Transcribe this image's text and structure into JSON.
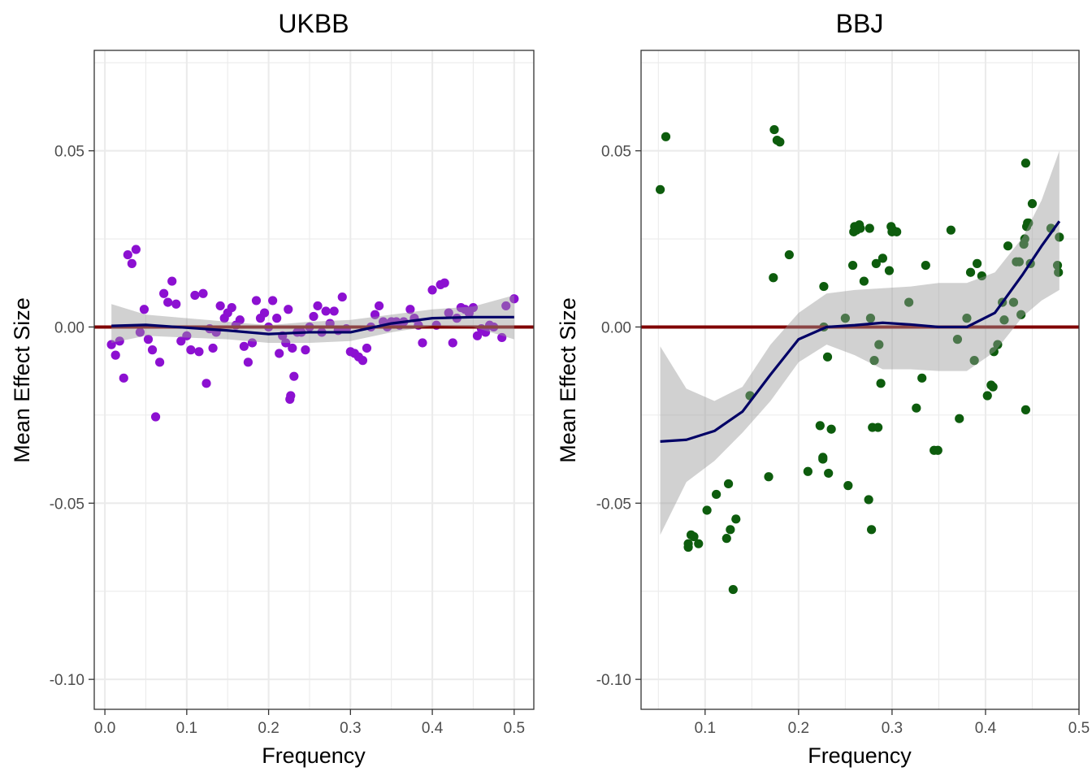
{
  "chart_data": [
    {
      "type": "scatter",
      "title": "UKBB",
      "xlabel": "Frequency",
      "ylabel": "Mean Effect Size",
      "xlim": [
        -0.013,
        0.524
      ],
      "ylim": [
        -0.1085,
        0.0785
      ],
      "xticks": [
        0.0,
        0.1,
        0.2,
        0.3,
        0.4,
        0.5
      ],
      "xtick_labels": [
        "0.0",
        "0.1",
        "0.2",
        "0.3",
        "0.4",
        "0.5"
      ],
      "yticks": [
        0.05,
        0.0,
        -0.05,
        -0.1
      ],
      "ytick_labels": [
        "0.05",
        "0.00",
        "-0.05",
        "-0.10"
      ],
      "grid": true,
      "reference_line": {
        "y": 0,
        "color": "#800000"
      },
      "point_color": "#8c10d1",
      "points": [
        [
          0.008,
          -0.005
        ],
        [
          0.013,
          -0.008
        ],
        [
          0.018,
          -0.004
        ],
        [
          0.023,
          -0.0145
        ],
        [
          0.028,
          0.0205
        ],
        [
          0.033,
          0.018
        ],
        [
          0.038,
          0.022
        ],
        [
          0.043,
          -0.0015
        ],
        [
          0.048,
          0.005
        ],
        [
          0.053,
          -0.0035
        ],
        [
          0.058,
          -0.0065
        ],
        [
          0.062,
          -0.0255
        ],
        [
          0.067,
          -0.01
        ],
        [
          0.072,
          0.0095
        ],
        [
          0.077,
          0.007
        ],
        [
          0.082,
          0.013
        ],
        [
          0.087,
          0.0065
        ],
        [
          0.093,
          -0.004
        ],
        [
          0.1,
          -0.0025
        ],
        [
          0.105,
          -0.0065
        ],
        [
          0.11,
          0.009
        ],
        [
          0.115,
          -0.007
        ],
        [
          0.12,
          0.0095
        ],
        [
          0.124,
          -0.016
        ],
        [
          0.128,
          -0.0005
        ],
        [
          0.132,
          -0.006
        ],
        [
          0.136,
          -0.0015
        ],
        [
          0.141,
          0.006
        ],
        [
          0.146,
          0.0025
        ],
        [
          0.15,
          0.004
        ],
        [
          0.155,
          0.0055
        ],
        [
          0.16,
          0.0005
        ],
        [
          0.165,
          0.002
        ],
        [
          0.17,
          -0.0055
        ],
        [
          0.175,
          -0.01
        ],
        [
          0.18,
          -0.0045
        ],
        [
          0.185,
          0.0075
        ],
        [
          0.19,
          0.0025
        ],
        [
          0.195,
          0.004
        ],
        [
          0.2,
          0.0
        ],
        [
          0.205,
          0.0075
        ],
        [
          0.21,
          0.0025
        ],
        [
          0.213,
          -0.0075
        ],
        [
          0.217,
          -0.0025
        ],
        [
          0.221,
          -0.0045
        ],
        [
          0.224,
          0.005
        ],
        [
          0.226,
          -0.0205
        ],
        [
          0.227,
          -0.0195
        ],
        [
          0.229,
          -0.006
        ],
        [
          0.231,
          -0.014
        ],
        [
          0.235,
          -0.0015
        ],
        [
          0.24,
          -0.0015
        ],
        [
          0.245,
          -0.0065
        ],
        [
          0.25,
          0.0
        ],
        [
          0.255,
          0.003
        ],
        [
          0.26,
          0.006
        ],
        [
          0.265,
          -0.0015
        ],
        [
          0.27,
          0.0045
        ],
        [
          0.275,
          0.001
        ],
        [
          0.28,
          0.0045
        ],
        [
          0.285,
          -0.001
        ],
        [
          0.29,
          0.0085
        ],
        [
          0.295,
          -0.0005
        ],
        [
          0.3,
          -0.007
        ],
        [
          0.305,
          -0.0075
        ],
        [
          0.31,
          -0.0085
        ],
        [
          0.315,
          -0.0095
        ],
        [
          0.32,
          -0.006
        ],
        [
          0.325,
          0.0
        ],
        [
          0.33,
          0.0035
        ],
        [
          0.335,
          0.006
        ],
        [
          0.34,
          0.0015
        ],
        [
          0.345,
          0.0
        ],
        [
          0.35,
          0.0015
        ],
        [
          0.356,
          0.0015
        ],
        [
          0.36,
          0.0005
        ],
        [
          0.365,
          0.0015
        ],
        [
          0.373,
          0.005
        ],
        [
          0.378,
          0.0025
        ],
        [
          0.383,
          0.0005
        ],
        [
          0.388,
          -0.0045
        ],
        [
          0.4,
          0.0105
        ],
        [
          0.405,
          0.0005
        ],
        [
          0.41,
          0.012
        ],
        [
          0.415,
          0.0125
        ],
        [
          0.42,
          0.004
        ],
        [
          0.425,
          -0.0045
        ],
        [
          0.43,
          0.0025
        ],
        [
          0.435,
          0.0055
        ],
        [
          0.44,
          0.005
        ],
        [
          0.445,
          0.004
        ],
        [
          0.45,
          0.0055
        ],
        [
          0.455,
          -0.0025
        ],
        [
          0.46,
          -0.0005
        ],
        [
          0.465,
          -0.0015
        ],
        [
          0.47,
          0.0005
        ],
        [
          0.475,
          0.0
        ],
        [
          0.485,
          -0.003
        ],
        [
          0.49,
          0.006
        ],
        [
          0.5,
          0.008
        ]
      ],
      "smooth": {
        "color": "#000066",
        "x": [
          0.008,
          0.05,
          0.1,
          0.15,
          0.2,
          0.25,
          0.3,
          0.35,
          0.4,
          0.45,
          0.5
        ],
        "y": [
          0.0003,
          0.0006,
          -0.0002,
          -0.001,
          -0.002,
          -0.0015,
          -0.0015,
          0.001,
          0.0025,
          0.0028,
          0.0028
        ],
        "lower": [
          -0.0045,
          -0.0025,
          -0.003,
          -0.0035,
          -0.0045,
          -0.0045,
          -0.004,
          -0.0015,
          0.0003,
          0.0,
          -0.0035
        ],
        "upper": [
          0.0065,
          0.0035,
          0.0025,
          0.0015,
          0.0005,
          0.0015,
          0.002,
          0.0035,
          0.005,
          0.0058,
          0.009
        ]
      }
    },
    {
      "type": "scatter",
      "title": "BBJ",
      "xlabel": "Frequency",
      "ylabel": "Mean Effect Size",
      "xlim": [
        0.0315,
        0.5
      ],
      "ylim": [
        -0.1085,
        0.0785
      ],
      "xticks": [
        0.1,
        0.2,
        0.3,
        0.4,
        0.5
      ],
      "xtick_labels": [
        "0.1",
        "0.2",
        "0.3",
        "0.4",
        "0.5"
      ],
      "yticks": [
        0.05,
        0.0,
        -0.05,
        -0.1
      ],
      "ytick_labels": [
        "0.05",
        "0.00",
        "-0.05",
        "-0.10"
      ],
      "grid": true,
      "reference_line": {
        "y": 0,
        "color": "#800000"
      },
      "point_color": "#0d5c0d",
      "points": [
        [
          0.052,
          0.039
        ],
        [
          0.058,
          0.054
        ],
        [
          0.082,
          -0.0625
        ],
        [
          0.082,
          -0.0615
        ],
        [
          0.085,
          -0.059
        ],
        [
          0.088,
          -0.0595
        ],
        [
          0.093,
          -0.0615
        ],
        [
          0.102,
          -0.052
        ],
        [
          0.112,
          -0.0475
        ],
        [
          0.123,
          -0.06
        ],
        [
          0.125,
          -0.0445
        ],
        [
          0.127,
          -0.0575
        ],
        [
          0.13,
          -0.0745
        ],
        [
          0.133,
          -0.0545
        ],
        [
          0.148,
          -0.0195
        ],
        [
          0.168,
          -0.0425
        ],
        [
          0.173,
          0.014
        ],
        [
          0.174,
          0.056
        ],
        [
          0.177,
          0.053
        ],
        [
          0.18,
          0.0525
        ],
        [
          0.19,
          0.0205
        ],
        [
          0.21,
          -0.041
        ],
        [
          0.223,
          -0.028
        ],
        [
          0.226,
          -0.0375
        ],
        [
          0.226,
          -0.037
        ],
        [
          0.227,
          0.0115
        ],
        [
          0.227,
          0.0
        ],
        [
          0.231,
          -0.0085
        ],
        [
          0.232,
          -0.0415
        ],
        [
          0.235,
          -0.029
        ],
        [
          0.25,
          0.0025
        ],
        [
          0.253,
          -0.045
        ],
        [
          0.258,
          0.0175
        ],
        [
          0.259,
          0.027
        ],
        [
          0.26,
          0.0285
        ],
        [
          0.261,
          0.028
        ],
        [
          0.262,
          0.0275
        ],
        [
          0.265,
          0.029
        ],
        [
          0.266,
          0.028
        ],
        [
          0.27,
          0.013
        ],
        [
          0.276,
          0.028
        ],
        [
          0.278,
          -0.0575
        ],
        [
          0.275,
          -0.049
        ],
        [
          0.277,
          0.0025
        ],
        [
          0.279,
          -0.0285
        ],
        [
          0.281,
          -0.0095
        ],
        [
          0.283,
          0.018
        ],
        [
          0.285,
          -0.0285
        ],
        [
          0.286,
          -0.005
        ],
        [
          0.288,
          -0.016
        ],
        [
          0.29,
          0.0195
        ],
        [
          0.297,
          0.016
        ],
        [
          0.299,
          0.0285
        ],
        [
          0.3,
          0.027
        ],
        [
          0.301,
          0.0275
        ],
        [
          0.305,
          0.027
        ],
        [
          0.318,
          0.007
        ],
        [
          0.326,
          -0.023
        ],
        [
          0.332,
          -0.0145
        ],
        [
          0.336,
          0.0175
        ],
        [
          0.345,
          -0.035
        ],
        [
          0.349,
          -0.035
        ],
        [
          0.363,
          0.0275
        ],
        [
          0.37,
          -0.0035
        ],
        [
          0.372,
          -0.026
        ],
        [
          0.38,
          0.0025
        ],
        [
          0.384,
          0.0155
        ],
        [
          0.388,
          -0.0095
        ],
        [
          0.391,
          0.018
        ],
        [
          0.396,
          0.0145
        ],
        [
          0.402,
          -0.0195
        ],
        [
          0.406,
          -0.0165
        ],
        [
          0.408,
          -0.017
        ],
        [
          0.409,
          -0.007
        ],
        [
          0.413,
          -0.005
        ],
        [
          0.418,
          0.007
        ],
        [
          0.42,
          0.002
        ],
        [
          0.424,
          0.023
        ],
        [
          0.43,
          0.007
        ],
        [
          0.433,
          0.0185
        ],
        [
          0.436,
          0.0185
        ],
        [
          0.438,
          0.0035
        ],
        [
          0.441,
          0.0235
        ],
        [
          0.442,
          0.025
        ],
        [
          0.443,
          -0.0235
        ],
        [
          0.443,
          0.0465
        ],
        [
          0.444,
          0.0285
        ],
        [
          0.445,
          0.0295
        ],
        [
          0.446,
          0.0295
        ],
        [
          0.448,
          0.018
        ],
        [
          0.45,
          0.035
        ],
        [
          0.47,
          0.028
        ],
        [
          0.477,
          0.0175
        ],
        [
          0.478,
          0.0155
        ],
        [
          0.479,
          0.0255
        ]
      ],
      "smooth": {
        "color": "#000066",
        "x": [
          0.052,
          0.08,
          0.11,
          0.14,
          0.17,
          0.2,
          0.23,
          0.26,
          0.29,
          0.32,
          0.35,
          0.38,
          0.41,
          0.44,
          0.46,
          0.479
        ],
        "y": [
          -0.0325,
          -0.032,
          -0.0295,
          -0.024,
          -0.0135,
          -0.0035,
          0.0,
          0.0005,
          0.0012,
          0.0007,
          0.0,
          0.0,
          0.004,
          0.015,
          0.023,
          0.03
        ],
        "lower": [
          -0.059,
          -0.044,
          -0.038,
          -0.03,
          -0.021,
          -0.01,
          -0.005,
          -0.008,
          -0.012,
          -0.012,
          -0.0125,
          -0.0125,
          -0.007,
          0.003,
          0.0075,
          0.0105
        ],
        "upper": [
          -0.0055,
          -0.0175,
          -0.021,
          -0.017,
          -0.005,
          0.004,
          0.0095,
          0.0105,
          0.011,
          0.0115,
          0.0125,
          0.0125,
          0.0155,
          0.0255,
          0.036,
          0.05
        ]
      }
    }
  ]
}
